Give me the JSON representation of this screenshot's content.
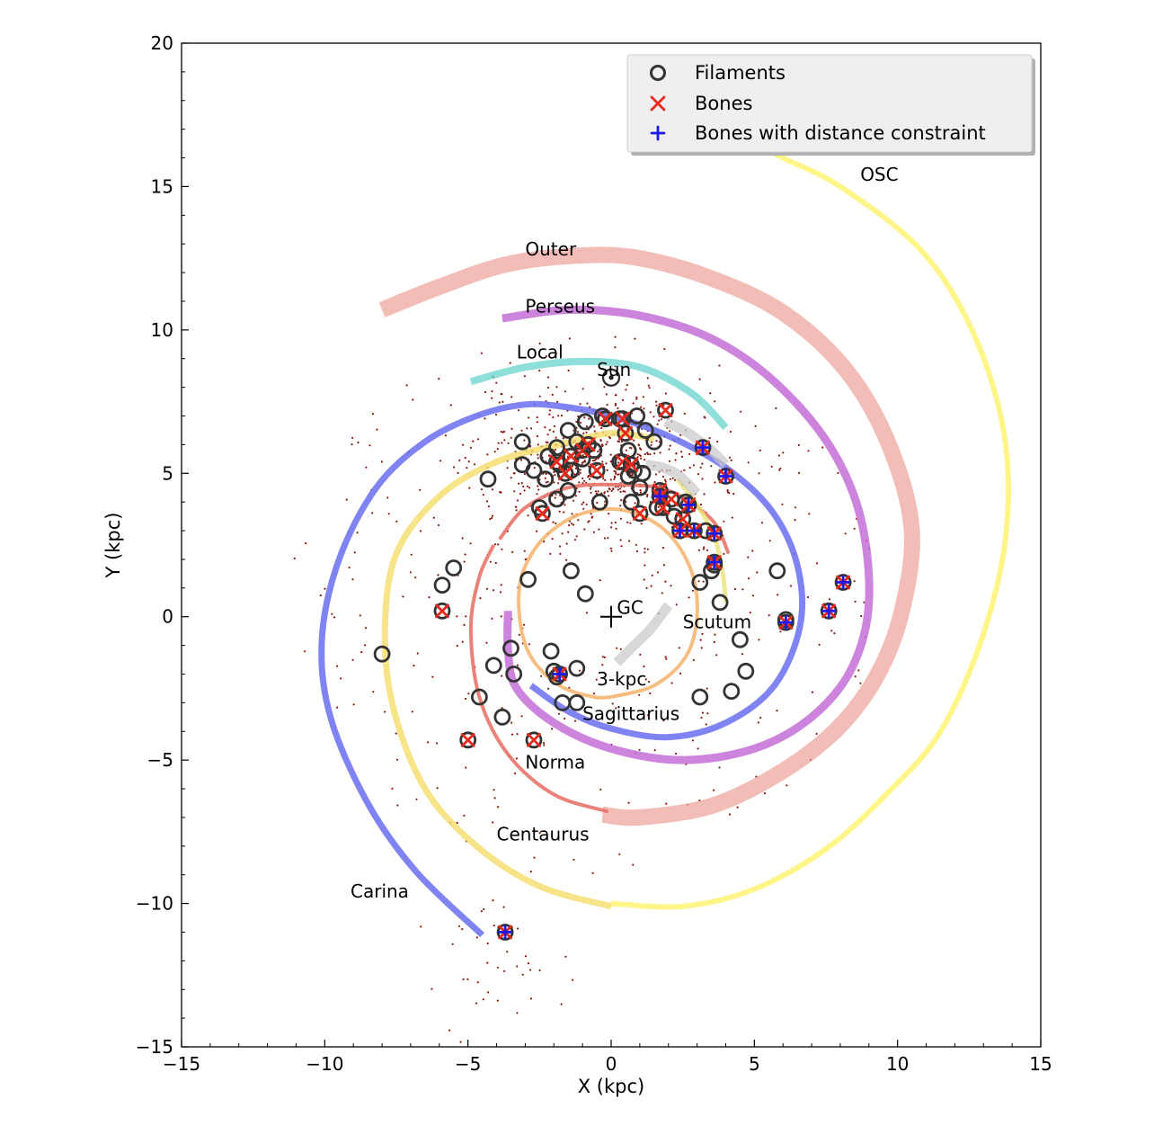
{
  "chart_data": {
    "type": "scatter",
    "xlabel": "X (kpc)",
    "ylabel": "Y (kpc)",
    "xlim": [
      -15,
      15
    ],
    "ylim": [
      -15,
      20
    ],
    "xticks": [
      -15,
      -10,
      -5,
      0,
      5,
      10,
      15
    ],
    "yticks": [
      -15,
      -10,
      -5,
      0,
      5,
      10,
      15,
      20
    ],
    "xtick_labels": [
      "−15",
      "−10",
      "−5",
      "0",
      "5",
      "10",
      "15"
    ],
    "ytick_labels": [
      "−15",
      "−10",
      "−5",
      "0",
      "5",
      "10",
      "15",
      "20"
    ],
    "legend_position": "top-right",
    "legend": [
      {
        "label": "Filaments",
        "marker": "circle",
        "color": "#333333"
      },
      {
        "label": "Bones",
        "marker": "x",
        "color": "#e8291c"
      },
      {
        "label": "Bones with distance constraint",
        "marker": "plus",
        "color": "#1a1aee"
      }
    ],
    "points": {
      "gc": [
        0,
        0
      ],
      "sun": [
        0,
        8.34
      ]
    },
    "labels": [
      {
        "text": "OSC",
        "x": 8.7,
        "y": 15.2
      },
      {
        "text": "Outer",
        "x": -3.0,
        "y": 12.6
      },
      {
        "text": "Perseus",
        "x": -3.0,
        "y": 10.6
      },
      {
        "text": "Local",
        "x": -3.3,
        "y": 9.0
      },
      {
        "text": "Sun",
        "x": -0.5,
        "y": 8.4
      },
      {
        "text": "GC",
        "x": 0.2,
        "y": 0.1
      },
      {
        "text": "Scutum",
        "x": 2.5,
        "y": -0.4
      },
      {
        "text": "3-kpc",
        "x": -0.5,
        "y": -2.4
      },
      {
        "text": "Sagittarius",
        "x": -1.0,
        "y": -3.6
      },
      {
        "text": "Norma",
        "x": -3.0,
        "y": -5.3
      },
      {
        "text": "Centaurus",
        "x": -4.0,
        "y": -7.8
      },
      {
        "text": "Carina",
        "x": -9.1,
        "y": -9.8
      }
    ],
    "arms": [
      {
        "name": "Outer",
        "color": "#eca098",
        "opacity": 0.7,
        "width": 18,
        "points": [
          [
            -8.0,
            10.7
          ],
          [
            -6.0,
            11.5
          ],
          [
            -3.6,
            12.3
          ],
          [
            -1.0,
            12.6
          ],
          [
            1.0,
            12.5
          ],
          [
            3.5,
            11.8
          ],
          [
            6.0,
            10.6
          ],
          [
            8.2,
            8.6
          ],
          [
            9.7,
            6.0
          ],
          [
            10.5,
            3.0
          ],
          [
            10.1,
            0.0
          ],
          [
            9.2,
            -2.2
          ],
          [
            7.8,
            -4.0
          ],
          [
            5.8,
            -5.5
          ],
          [
            3.5,
            -6.6
          ],
          [
            1.0,
            -7.0
          ],
          [
            -0.3,
            -6.9
          ]
        ]
      },
      {
        "name": "Perseus",
        "color": "#c46fd6",
        "opacity": 0.85,
        "width": 9,
        "points": [
          [
            -3.8,
            10.4
          ],
          [
            -1.5,
            10.7
          ],
          [
            1.0,
            10.5
          ],
          [
            3.5,
            9.7
          ],
          [
            5.7,
            8.2
          ],
          [
            7.6,
            6.0
          ],
          [
            8.7,
            3.5
          ],
          [
            9.0,
            0.5
          ],
          [
            8.4,
            -1.8
          ],
          [
            7.0,
            -3.5
          ],
          [
            5.0,
            -4.6
          ],
          [
            2.5,
            -5.0
          ],
          [
            0.0,
            -4.6
          ],
          [
            -2.0,
            -3.7
          ],
          [
            -3.3,
            -2.5
          ],
          [
            -3.6,
            -1.2
          ],
          [
            -3.6,
            0.2
          ]
        ]
      },
      {
        "name": "Local",
        "color": "#72d6d0",
        "opacity": 0.8,
        "width": 8,
        "points": [
          [
            -4.9,
            8.2
          ],
          [
            -3.0,
            8.7
          ],
          [
            -1.0,
            8.9
          ],
          [
            1.0,
            8.7
          ],
          [
            2.8,
            7.8
          ],
          [
            4.0,
            6.6
          ]
        ]
      },
      {
        "name": "Sagittarius",
        "color": "#6a6ef0",
        "opacity": 0.85,
        "width": 7,
        "points": [
          [
            -2.8,
            -2.4
          ],
          [
            -1.5,
            -3.3
          ],
          [
            0.0,
            -3.9
          ],
          [
            2.0,
            -4.2
          ],
          [
            4.0,
            -3.7
          ],
          [
            5.7,
            -2.4
          ],
          [
            6.6,
            -0.3
          ],
          [
            6.5,
            1.8
          ],
          [
            5.6,
            3.7
          ],
          [
            4.0,
            5.2
          ],
          [
            2.0,
            6.3
          ],
          [
            0.0,
            7.0
          ],
          [
            -1.5,
            7.3
          ],
          [
            -3.0,
            7.4
          ],
          [
            -4.7,
            7.0
          ],
          [
            -6.5,
            6.1
          ],
          [
            -8.2,
            4.5
          ],
          [
            -9.5,
            2.0
          ],
          [
            -10.1,
            -0.8
          ],
          [
            -9.8,
            -3.5
          ],
          [
            -8.5,
            -6.5
          ],
          [
            -6.8,
            -8.9
          ],
          [
            -4.5,
            -11.1
          ]
        ]
      },
      {
        "name": "Centaurus",
        "color": "#f5dc6a",
        "opacity": 0.8,
        "width": 7,
        "points": [
          [
            1.5,
            6.2
          ],
          [
            0.0,
            6.4
          ],
          [
            -1.8,
            6.0
          ],
          [
            -4.0,
            5.4
          ],
          [
            -6.0,
            4.2
          ],
          [
            -7.5,
            2.2
          ],
          [
            -7.9,
            -0.5
          ],
          [
            -7.6,
            -3.2
          ],
          [
            -6.5,
            -6.0
          ],
          [
            -4.7,
            -8.0
          ],
          [
            -2.5,
            -9.4
          ],
          [
            0.0,
            -10.1
          ]
        ]
      },
      {
        "name": "OSC",
        "color": "#fff36a",
        "opacity": 0.8,
        "width": 6,
        "points": [
          [
            0.0,
            -10.0
          ],
          [
            2.5,
            -10.1
          ],
          [
            5.0,
            -9.5
          ],
          [
            7.5,
            -8.1
          ],
          [
            9.6,
            -6.2
          ],
          [
            11.5,
            -4.0
          ],
          [
            13.0,
            -0.6
          ],
          [
            13.8,
            3.0
          ],
          [
            13.7,
            6.5
          ],
          [
            12.6,
            10.0
          ],
          [
            10.8,
            12.8
          ],
          [
            8.0,
            15.0
          ],
          [
            6.0,
            16.0
          ],
          [
            4.1,
            17.0
          ]
        ]
      },
      {
        "name": "Norma",
        "color": "#e8746a",
        "opacity": 0.9,
        "width": 4,
        "points": [
          [
            -0.1,
            -6.8
          ],
          [
            -2.0,
            -6.2
          ],
          [
            -3.6,
            -4.8
          ],
          [
            -4.6,
            -2.8
          ],
          [
            -4.9,
            -0.4
          ],
          [
            -4.6,
            1.4
          ],
          [
            -4.1,
            2.5
          ]
        ]
      },
      {
        "name": "Norma-north",
        "color": "#e8746a",
        "opacity": 0.9,
        "width": 4,
        "points": [
          [
            -3.9,
            2.7
          ],
          [
            -3.0,
            3.8
          ],
          [
            -1.5,
            4.5
          ],
          [
            0.3,
            4.6
          ],
          [
            2.0,
            4.4
          ],
          [
            3.5,
            3.4
          ],
          [
            4.1,
            2.2
          ]
        ]
      },
      {
        "name": "3-kpc",
        "color": "#f4b36a",
        "opacity": 0.85,
        "width": 4,
        "points": [
          [
            0.0,
            -2.8
          ],
          [
            1.5,
            -2.4
          ],
          [
            2.6,
            -1.4
          ],
          [
            3.0,
            0.0
          ],
          [
            2.8,
            1.6
          ],
          [
            1.9,
            3.0
          ],
          [
            0.5,
            3.7
          ],
          [
            -1.0,
            3.6
          ],
          [
            -2.3,
            2.8
          ],
          [
            -3.1,
            1.5
          ],
          [
            -3.2,
            0.0
          ],
          [
            -2.8,
            -1.4
          ],
          [
            -1.8,
            -2.4
          ],
          [
            -0.6,
            -2.8
          ],
          [
            0.0,
            -2.8
          ]
        ]
      },
      {
        "name": "Scutum-ext",
        "color": "#e8e070",
        "opacity": 0.75,
        "width": 5,
        "points": [
          [
            2.3,
            4.8
          ],
          [
            3.0,
            3.9
          ],
          [
            3.6,
            2.8
          ],
          [
            3.9,
            1.5
          ],
          [
            4.0,
            0.5
          ]
        ]
      },
      {
        "name": "Bar-a",
        "color": "#c8c8c8",
        "opacity": 0.7,
        "width": 11,
        "points": [
          [
            1.9,
            6.8
          ],
          [
            2.7,
            6.4
          ],
          [
            3.5,
            5.8
          ],
          [
            4.0,
            5.3
          ]
        ]
      },
      {
        "name": "Bar-b",
        "color": "#c8c8c8",
        "opacity": 0.7,
        "width": 11,
        "points": [
          [
            1.2,
            5.3
          ],
          [
            1.8,
            5.2
          ],
          [
            2.4,
            4.9
          ],
          [
            3.0,
            4.3
          ]
        ]
      },
      {
        "name": "Bar-c",
        "color": "#c8c8c8",
        "opacity": 0.7,
        "width": 11,
        "points": [
          [
            2.0,
            0.4
          ],
          [
            1.4,
            -0.4
          ],
          [
            0.8,
            -1.0
          ],
          [
            0.2,
            -1.6
          ]
        ]
      }
    ],
    "filaments": [
      [
        -3.1,
        6.1
      ],
      [
        -3.1,
        5.3
      ],
      [
        -2.7,
        5.1
      ],
      [
        -2.2,
        5.6
      ],
      [
        -1.9,
        5.9
      ],
      [
        -1.5,
        6.5
      ],
      [
        -1.2,
        6.1
      ],
      [
        -0.9,
        6.8
      ],
      [
        -1.8,
        5.3
      ],
      [
        -1.4,
        5.1
      ],
      [
        -1.0,
        5.5
      ],
      [
        -0.6,
        5.8
      ],
      [
        -0.3,
        7.0
      ],
      [
        0.3,
        6.9
      ],
      [
        0.9,
        7.0
      ],
      [
        1.2,
        6.5
      ],
      [
        0.6,
        5.8
      ],
      [
        0.3,
        5.4
      ],
      [
        0.8,
        5.1
      ],
      [
        1.0,
        4.5
      ],
      [
        0.6,
        4.9
      ],
      [
        1.1,
        5.0
      ],
      [
        1.5,
        6.1
      ],
      [
        -2.3,
        4.8
      ],
      [
        -2.5,
        3.8
      ],
      [
        -1.9,
        4.1
      ],
      [
        -1.5,
        4.4
      ],
      [
        -0.4,
        4.0
      ],
      [
        0.7,
        4.0
      ],
      [
        1.6,
        3.8
      ],
      [
        2.2,
        3.5
      ],
      [
        2.6,
        4.0
      ],
      [
        3.3,
        3.0
      ],
      [
        3.6,
        1.8
      ],
      [
        3.5,
        1.6
      ],
      [
        3.1,
        1.2
      ],
      [
        3.8,
        0.5
      ],
      [
        5.8,
        1.6
      ],
      [
        -1.4,
        1.6
      ],
      [
        -0.9,
        0.8
      ],
      [
        -2.9,
        1.3
      ],
      [
        -5.5,
        1.7
      ],
      [
        -5.9,
        1.1
      ],
      [
        -4.3,
        4.8
      ],
      [
        -8.0,
        -1.3
      ],
      [
        -3.5,
        -1.1
      ],
      [
        -4.1,
        -1.7
      ],
      [
        -3.4,
        -2.0
      ],
      [
        -2.1,
        -1.2
      ],
      [
        -1.2,
        -1.8
      ],
      [
        -2.0,
        -1.9
      ],
      [
        -1.9,
        -2.1
      ],
      [
        -1.7,
        -3.0
      ],
      [
        -1.2,
        -3.0
      ],
      [
        -4.6,
        -2.8
      ],
      [
        -3.8,
        -3.5
      ],
      [
        3.1,
        -2.8
      ],
      [
        4.2,
        -2.6
      ],
      [
        4.7,
        -1.9
      ],
      [
        4.5,
        -0.8
      ],
      [
        6.1,
        -0.1
      ],
      [
        0.0,
        8.34
      ]
    ],
    "bones": [
      [
        -2.4,
        3.6
      ],
      [
        -1.9,
        5.4
      ],
      [
        -1.6,
        5.0
      ],
      [
        -1.4,
        5.6
      ],
      [
        -1.0,
        5.8
      ],
      [
        -0.8,
        6.0
      ],
      [
        -0.5,
        5.1
      ],
      [
        -0.2,
        6.9
      ],
      [
        0.4,
        6.9
      ],
      [
        0.5,
        6.4
      ],
      [
        0.4,
        5.4
      ],
      [
        0.7,
        5.3
      ],
      [
        1.0,
        3.6
      ],
      [
        1.7,
        4.4
      ],
      [
        1.8,
        3.8
      ],
      [
        2.1,
        4.1
      ],
      [
        2.5,
        3.4
      ],
      [
        1.9,
        7.2
      ],
      [
        -5.9,
        0.2
      ],
      [
        -5.0,
        -4.3
      ],
      [
        -2.7,
        -4.3
      ]
    ],
    "bones_distance": [
      [
        3.2,
        5.9
      ],
      [
        4.0,
        4.9
      ],
      [
        1.7,
        4.2
      ],
      [
        2.4,
        3.0
      ],
      [
        2.9,
        3.0
      ],
      [
        2.7,
        3.9
      ],
      [
        3.6,
        2.9
      ],
      [
        3.6,
        1.9
      ],
      [
        -1.8,
        -2.0
      ],
      [
        6.1,
        -0.2
      ],
      [
        7.6,
        0.2
      ],
      [
        8.1,
        1.2
      ],
      [
        -3.7,
        -11.0
      ]
    ],
    "seed": 7
  }
}
